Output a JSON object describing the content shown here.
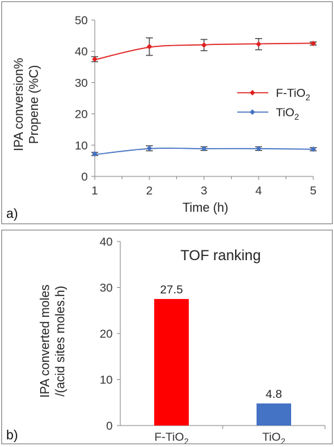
{
  "chart_data": [
    {
      "type": "line",
      "panel_label": "a)",
      "xlabel": "Time (h)",
      "ylabel_lines": [
        "IPA conversion%",
        "Propene (%C)"
      ],
      "x": [
        1,
        2,
        3,
        4,
        5
      ],
      "xlim": [
        1,
        5
      ],
      "ylim": [
        0,
        50
      ],
      "xticks": [
        "1",
        "2",
        "3",
        "4",
        "5"
      ],
      "yticks": [
        "0",
        "10",
        "20",
        "30",
        "40",
        "50"
      ],
      "legend_position": "right",
      "series": [
        {
          "name": "F-TiO",
          "name_sub": "2",
          "color": "#e02020",
          "values": [
            37.5,
            41.5,
            42,
            42.3,
            42.5
          ],
          "errors": [
            0.8,
            2.8,
            1.8,
            1.8,
            0.5
          ],
          "fit": [
            37.3,
            41.3,
            42.1,
            42.4,
            42.6
          ]
        },
        {
          "name": "TiO",
          "name_sub": "2",
          "color": "#4472c4",
          "values": [
            7.2,
            9.0,
            8.9,
            8.9,
            8.7
          ],
          "errors": [
            0.5,
            0.8,
            0.6,
            0.6,
            0.5
          ],
          "fit": [
            7.0,
            8.9,
            8.9,
            8.9,
            8.7
          ]
        }
      ],
      "grid": false
    },
    {
      "type": "bar",
      "panel_label": "b)",
      "title": "TOF ranking",
      "ylabel_lines": [
        "IPA converted moles",
        "/(acid sites moles.h)"
      ],
      "categories": [
        {
          "label": "F-TiO",
          "sub": "2"
        },
        {
          "label": "TiO",
          "sub": "2"
        }
      ],
      "values": [
        27.5,
        4.8
      ],
      "value_labels": [
        "27.5",
        "4.8"
      ],
      "colors": [
        "#ff0000",
        "#4472c4"
      ],
      "ylim": [
        0,
        40
      ],
      "yticks": [
        "0",
        "10",
        "20",
        "30",
        "40"
      ],
      "grid": false
    }
  ]
}
